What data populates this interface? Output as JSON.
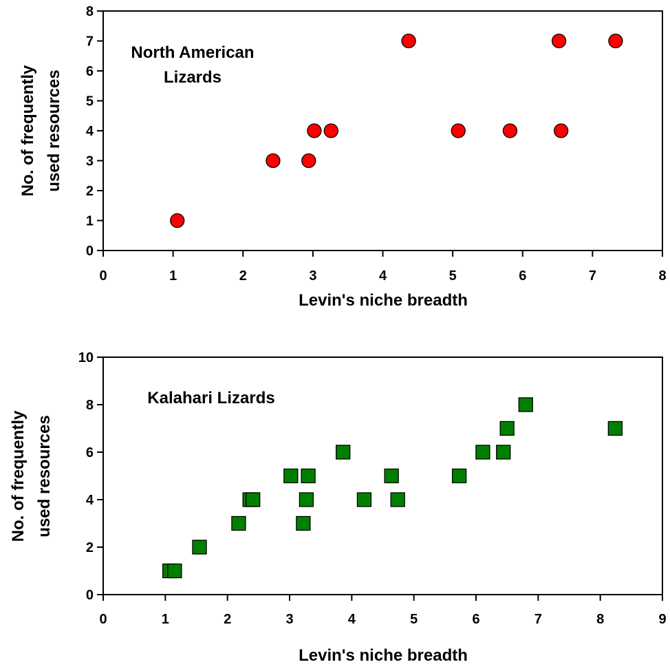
{
  "chart_data": [
    {
      "type": "scatter",
      "annotation": [
        "North American",
        "Lizards"
      ],
      "xlabel": "Levin's niche breadth",
      "ylabel": [
        "No. of frequently",
        "used resources"
      ],
      "xlim": [
        0,
        8
      ],
      "ylim": [
        0,
        8
      ],
      "xticks": [
        0,
        1,
        2,
        3,
        4,
        5,
        6,
        7,
        8
      ],
      "yticks": [
        0,
        1,
        2,
        3,
        4,
        5,
        6,
        7,
        8
      ],
      "grid": false,
      "marker": "circle",
      "color": "#ff0000",
      "points": [
        {
          "x": 1.06,
          "y": 1
        },
        {
          "x": 2.43,
          "y": 3
        },
        {
          "x": 2.94,
          "y": 3
        },
        {
          "x": 3.02,
          "y": 4
        },
        {
          "x": 3.26,
          "y": 4
        },
        {
          "x": 4.37,
          "y": 7
        },
        {
          "x": 5.08,
          "y": 4
        },
        {
          "x": 5.82,
          "y": 4
        },
        {
          "x": 6.52,
          "y": 7
        },
        {
          "x": 6.55,
          "y": 4
        },
        {
          "x": 7.33,
          "y": 7
        }
      ]
    },
    {
      "type": "scatter",
      "annotation": [
        "Kalahari Lizards"
      ],
      "xlabel": "Levin's niche breadth",
      "ylabel": [
        "No. of frequently",
        "used resources"
      ],
      "xlim": [
        0,
        9
      ],
      "ylim": [
        0,
        10
      ],
      "xticks": [
        0,
        1,
        2,
        3,
        4,
        5,
        6,
        7,
        8,
        9
      ],
      "yticks": [
        0,
        2,
        4,
        6,
        8,
        10
      ],
      "grid": false,
      "marker": "square",
      "color": "#008000",
      "points": [
        {
          "x": 1.07,
          "y": 1
        },
        {
          "x": 1.15,
          "y": 1
        },
        {
          "x": 1.55,
          "y": 2
        },
        {
          "x": 2.18,
          "y": 3
        },
        {
          "x": 2.36,
          "y": 4
        },
        {
          "x": 2.41,
          "y": 4
        },
        {
          "x": 3.02,
          "y": 5
        },
        {
          "x": 3.22,
          "y": 3
        },
        {
          "x": 3.27,
          "y": 4
        },
        {
          "x": 3.3,
          "y": 5
        },
        {
          "x": 3.86,
          "y": 6
        },
        {
          "x": 4.2,
          "y": 4
        },
        {
          "x": 4.64,
          "y": 5
        },
        {
          "x": 4.74,
          "y": 4
        },
        {
          "x": 5.73,
          "y": 5
        },
        {
          "x": 6.11,
          "y": 6
        },
        {
          "x": 6.44,
          "y": 6
        },
        {
          "x": 6.5,
          "y": 7
        },
        {
          "x": 6.8,
          "y": 8
        },
        {
          "x": 8.24,
          "y": 7
        }
      ]
    }
  ]
}
